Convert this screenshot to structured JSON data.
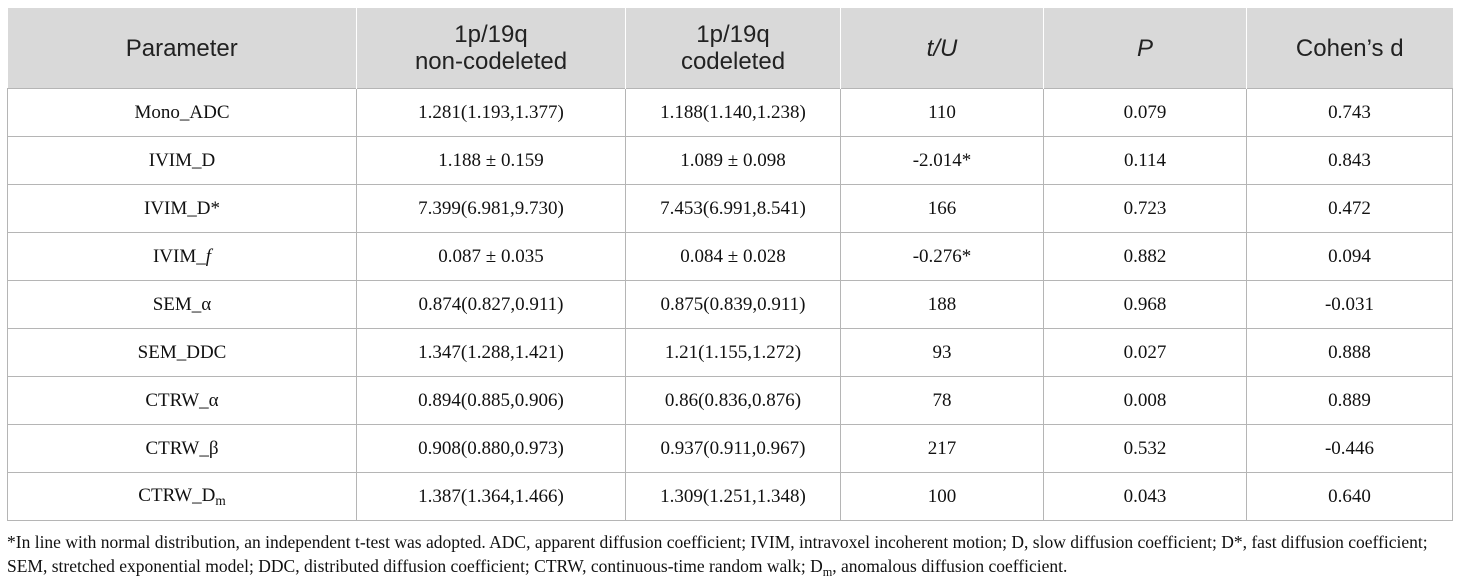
{
  "table": {
    "headers": [
      {
        "lines": [
          "Parameter"
        ]
      },
      {
        "lines": [
          "1p/19q",
          "non-codeleted"
        ]
      },
      {
        "lines": [
          "1p/19q",
          "codeleted"
        ]
      },
      {
        "lines": [
          "t/U"
        ]
      },
      {
        "lines": [
          "P"
        ]
      },
      {
        "lines": [
          "Cohen’s d"
        ]
      }
    ],
    "rows": [
      {
        "param": "Mono_ADC",
        "param_sub": "",
        "non_codeleted": "1.281(1.193,1.377)",
        "codeleted": "1.188(1.140,1.238)",
        "t_u": "110",
        "p": "0.079",
        "cohens_d": "0.743"
      },
      {
        "param": "IVIM_D",
        "param_sub": "",
        "non_codeleted": "1.188 ± 0.159",
        "codeleted": "1.089 ± 0.098",
        "t_u": "-2.014*",
        "p": "0.114",
        "cohens_d": "0.843"
      },
      {
        "param": "IVIM_D*",
        "param_sub": "",
        "non_codeleted": "7.399(6.981,9.730)",
        "codeleted": "7.453(6.991,8.541)",
        "t_u": "166",
        "p": "0.723",
        "cohens_d": "0.472"
      },
      {
        "param": "IVIM_f",
        "param_sub": "",
        "non_codeleted": "0.087 ± 0.035",
        "codeleted": "0.084 ± 0.028",
        "t_u": "-0.276*",
        "p": "0.882",
        "cohens_d": "0.094"
      },
      {
        "param": "SEM_α",
        "param_sub": "",
        "non_codeleted": "0.874(0.827,0.911)",
        "codeleted": "0.875(0.839,0.911)",
        "t_u": "188",
        "p": "0.968",
        "cohens_d": "-0.031"
      },
      {
        "param": "SEM_DDC",
        "param_sub": "",
        "non_codeleted": "1.347(1.288,1.421)",
        "codeleted": "1.21(1.155,1.272)",
        "t_u": "93",
        "p": "0.027",
        "cohens_d": "0.888"
      },
      {
        "param": "CTRW_α",
        "param_sub": "",
        "non_codeleted": "0.894(0.885,0.906)",
        "codeleted": "0.86(0.836,0.876)",
        "t_u": "78",
        "p": "0.008",
        "cohens_d": "0.889"
      },
      {
        "param": "CTRW_β",
        "param_sub": "",
        "non_codeleted": "0.908(0.880,0.973)",
        "codeleted": "0.937(0.911,0.967)",
        "t_u": "217",
        "p": "0.532",
        "cohens_d": "-0.446"
      },
      {
        "param": "CTRW_D",
        "param_sub": "m",
        "non_codeleted": "1.387(1.364,1.466)",
        "codeleted": "1.309(1.251,1.348)",
        "t_u": "100",
        "p": "0.043",
        "cohens_d": "0.640"
      }
    ]
  },
  "footnote": {
    "part1": "*In line with normal distribution, an independent t-test was adopted. ADC, apparent diffusion coefficient; IVIM, intravoxel incoherent motion; D, slow diffusion coefficient; D*, fast diffusion coefficient; SEM, stretched exponential model; DDC, distributed diffusion coefficient; CTRW, continuous-time random walk; D",
    "sub": "m",
    "part2": ", anomalous diffusion coefficient."
  }
}
